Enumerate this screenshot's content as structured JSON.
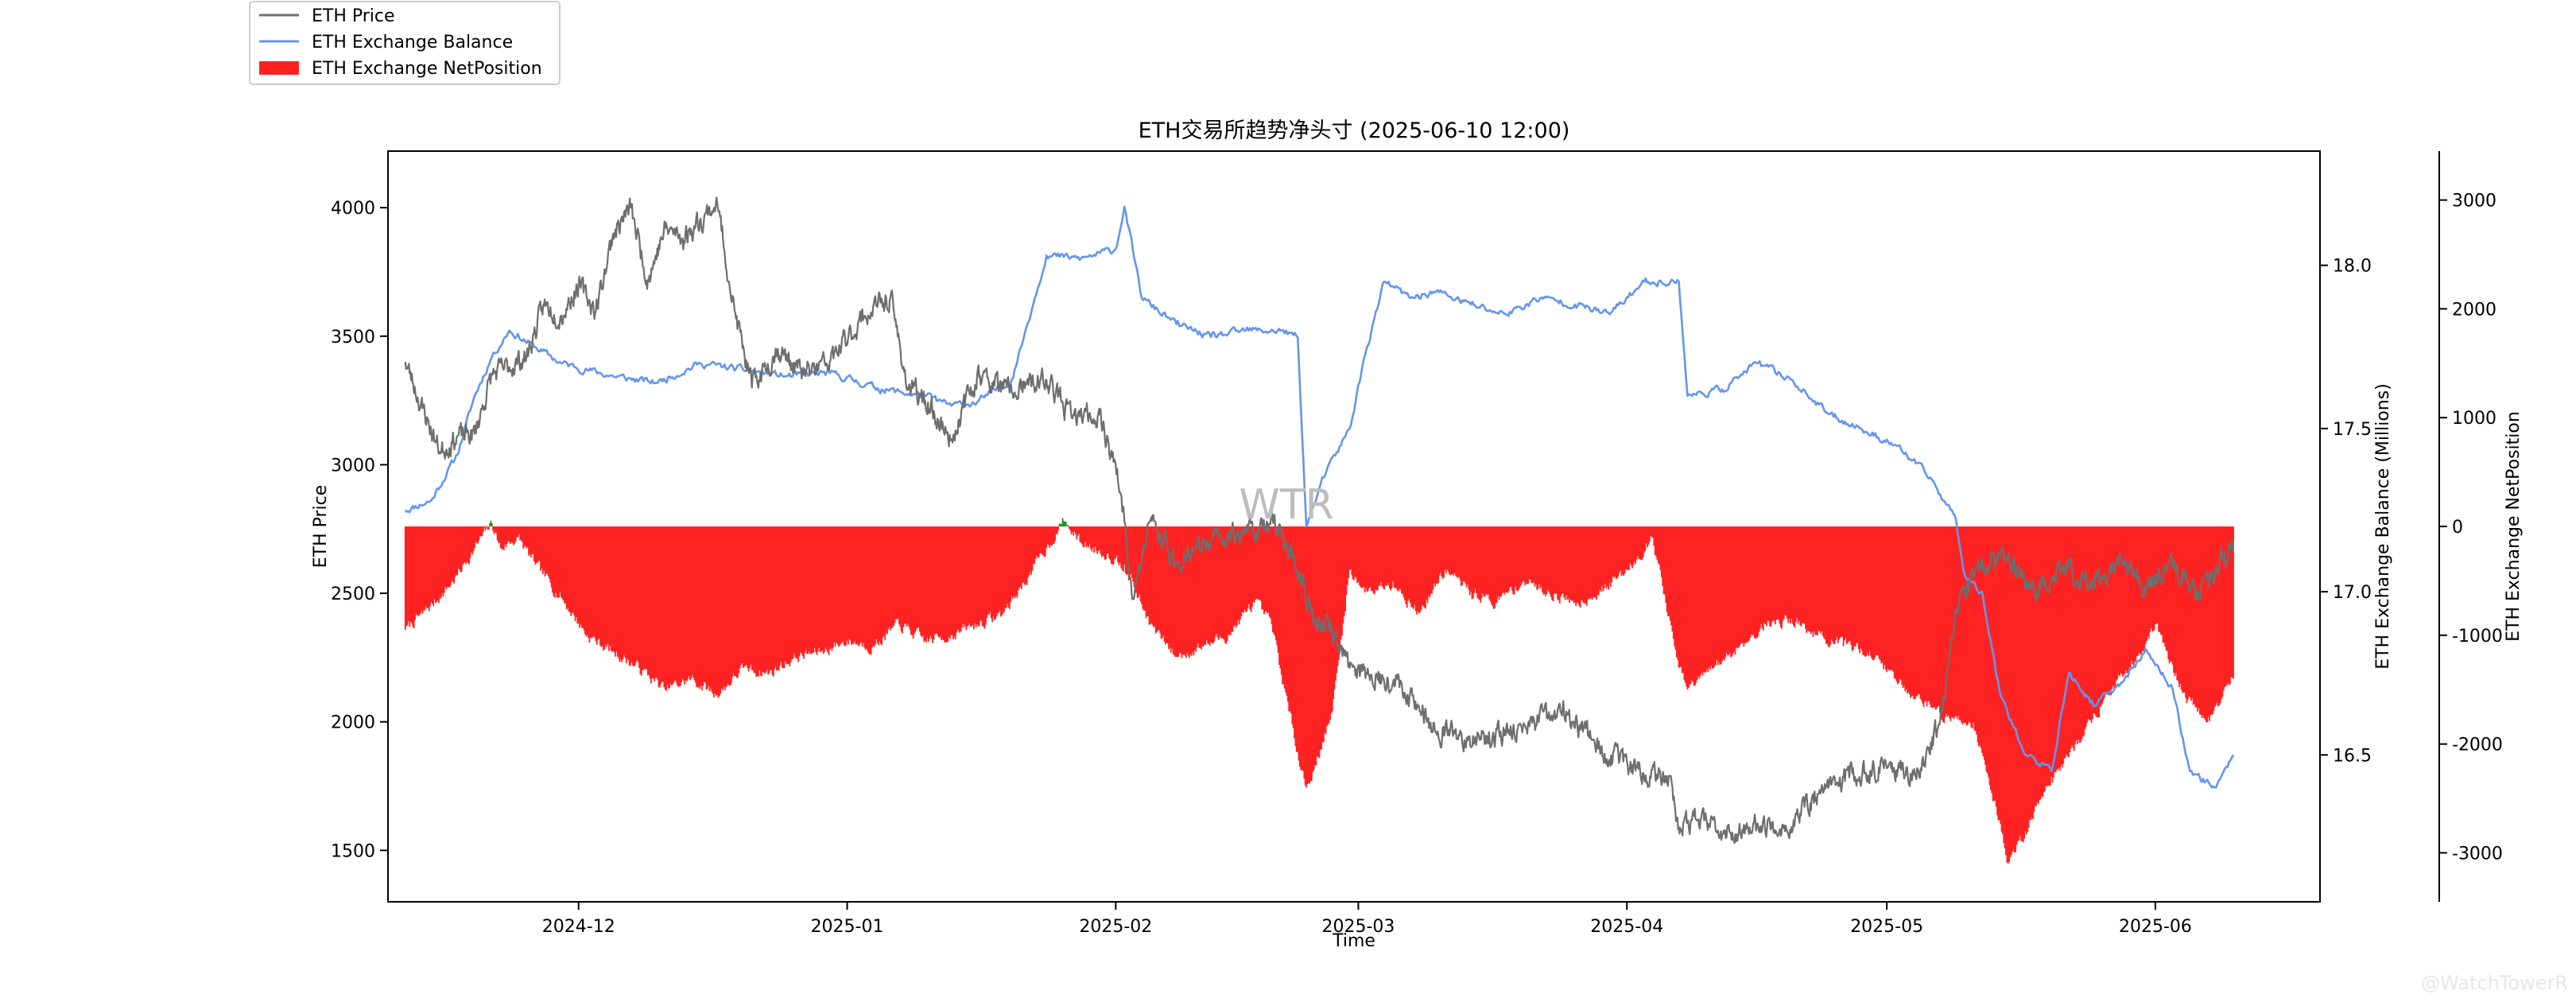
{
  "chart_data": {
    "type": "line",
    "title": "ETH交易所趋势净头寸 (2025-06-10 12:00)",
    "xlabel": "Time",
    "ylabel_left": "ETH Price",
    "ylabel_right1": "ETH Exchange Balance (Millions)",
    "ylabel_right2": "ETH Exchange NetPosition",
    "x_range": [
      "2024-11-09",
      "2025-06-20"
    ],
    "x_ticks": [
      "2024-12",
      "2025-01",
      "2025-02",
      "2025-03",
      "2025-04",
      "2025-05",
      "2025-06"
    ],
    "price_axis": {
      "range": [
        1300,
        4220
      ],
      "ticks": [
        1500,
        2000,
        2500,
        3000,
        3500,
        4000
      ]
    },
    "balance_axis": {
      "range": [
        16.05,
        18.35
      ],
      "ticks": [
        "16.5",
        "17.0",
        "17.5",
        "18.0"
      ]
    },
    "netpos_axis": {
      "range": [
        -3450,
        3450
      ],
      "ticks": [
        -3000,
        -2000,
        -1000,
        0,
        1000,
        2000,
        3000
      ]
    },
    "legend": {
      "position": "top-left",
      "entries": [
        "ETH Price",
        "ETH Exchange Balance",
        "ETH Exchange NetPosition"
      ]
    },
    "colors": {
      "price": "#6e6e6e",
      "balance": "#6495ed",
      "net_negative": "#ff2222",
      "net_positive": "#2e8b22"
    },
    "series": [
      {
        "name": "ETH Price",
        "axis": "left",
        "x": [
          "2024-11-11",
          "2024-11-13",
          "2024-11-15",
          "2024-11-17",
          "2024-11-19",
          "2024-11-21",
          "2024-11-23",
          "2024-11-25",
          "2024-11-27",
          "2024-11-29",
          "2024-12-01",
          "2024-12-03",
          "2024-12-05",
          "2024-12-07",
          "2024-12-09",
          "2024-12-11",
          "2024-12-13",
          "2024-12-15",
          "2024-12-17",
          "2024-12-19",
          "2024-12-21",
          "2024-12-24",
          "2024-12-27",
          "2024-12-30",
          "2025-01-03",
          "2025-01-06",
          "2025-01-08",
          "2025-01-10",
          "2025-01-13",
          "2025-01-16",
          "2025-01-20",
          "2025-01-24",
          "2025-01-27",
          "2025-01-30",
          "2025-02-01",
          "2025-02-02",
          "2025-02-03",
          "2025-02-05",
          "2025-02-08",
          "2025-02-12",
          "2025-02-16",
          "2025-02-20",
          "2025-02-24",
          "2025-02-26",
          "2025-02-28",
          "2025-03-03",
          "2025-03-06",
          "2025-03-10",
          "2025-03-15",
          "2025-03-20",
          "2025-03-25",
          "2025-03-29",
          "2025-04-02",
          "2025-04-06",
          "2025-04-07",
          "2025-04-09",
          "2025-04-12",
          "2025-04-16",
          "2025-04-20",
          "2025-04-23",
          "2025-04-27",
          "2025-05-01",
          "2025-05-05",
          "2025-05-07",
          "2025-05-09",
          "2025-05-11",
          "2025-05-14",
          "2025-05-18",
          "2025-05-22",
          "2025-05-25",
          "2025-05-28",
          "2025-05-31",
          "2025-06-03",
          "2025-06-06",
          "2025-06-09",
          "2025-06-10"
        ],
        "values": [
          3400,
          3220,
          3050,
          3110,
          3120,
          3350,
          3380,
          3420,
          3620,
          3580,
          3700,
          3600,
          3900,
          4000,
          3720,
          3920,
          3880,
          3950,
          4020,
          3600,
          3300,
          3450,
          3350,
          3400,
          3580,
          3650,
          3300,
          3250,
          3100,
          3350,
          3280,
          3330,
          3180,
          3200,
          3000,
          2780,
          2480,
          2780,
          2620,
          2700,
          2750,
          2760,
          2400,
          2350,
          2210,
          2180,
          2150,
          1960,
          1930,
          1980,
          2040,
          1890,
          1810,
          1790,
          1590,
          1620,
          1560,
          1600,
          1590,
          1720,
          1800,
          1820,
          1810,
          1990,
          2420,
          2580,
          2650,
          2520,
          2600,
          2520,
          2640,
          2520,
          2600,
          2500,
          2660,
          2710
        ]
      },
      {
        "name": "ETH Exchange Balance",
        "axis": "right1",
        "x": [
          "2024-11-11",
          "2024-11-14",
          "2024-11-17",
          "2024-11-19",
          "2024-11-21",
          "2024-11-23",
          "2024-11-26",
          "2024-11-29",
          "2024-12-02",
          "2024-12-05",
          "2024-12-10",
          "2024-12-15",
          "2024-12-20",
          "2024-12-25",
          "2024-12-30",
          "2025-01-05",
          "2025-01-10",
          "2025-01-13",
          "2025-01-16",
          "2025-01-20",
          "2025-01-24",
          "2025-01-28",
          "2025-02-01",
          "2025-02-02",
          "2025-02-04",
          "2025-02-08",
          "2025-02-12",
          "2025-02-16",
          "2025-02-20",
          "2025-02-22",
          "2025-02-23",
          "2025-02-25",
          "2025-02-28",
          "2025-03-02",
          "2025-03-04",
          "2025-03-07",
          "2025-03-10",
          "2025-03-14",
          "2025-03-18",
          "2025-03-22",
          "2025-03-26",
          "2025-03-30",
          "2025-04-03",
          "2025-04-07",
          "2025-04-08",
          "2025-04-12",
          "2025-04-16",
          "2025-04-20",
          "2025-04-24",
          "2025-04-28",
          "2025-05-02",
          "2025-05-06",
          "2025-05-09",
          "2025-05-10",
          "2025-05-12",
          "2025-05-14",
          "2025-05-17",
          "2025-05-20",
          "2025-05-22",
          "2025-05-25",
          "2025-05-28",
          "2025-05-31",
          "2025-06-03",
          "2025-06-05",
          "2025-06-08",
          "2025-06-10"
        ],
        "values": [
          17.25,
          17.28,
          17.42,
          17.6,
          17.72,
          17.8,
          17.75,
          17.7,
          17.68,
          17.66,
          17.64,
          17.7,
          17.68,
          17.66,
          17.67,
          17.62,
          17.6,
          17.57,
          17.58,
          17.65,
          18.03,
          18.02,
          18.05,
          18.18,
          17.9,
          17.82,
          17.78,
          17.8,
          17.8,
          17.78,
          17.2,
          17.35,
          17.5,
          17.75,
          17.95,
          17.9,
          17.92,
          17.88,
          17.85,
          17.9,
          17.88,
          17.85,
          17.95,
          17.95,
          17.6,
          17.62,
          17.7,
          17.65,
          17.55,
          17.5,
          17.45,
          17.35,
          17.22,
          17.05,
          17.0,
          16.7,
          16.5,
          16.45,
          16.75,
          16.65,
          16.72,
          16.82,
          16.7,
          16.45,
          16.4,
          16.5
        ]
      },
      {
        "name": "ETH Exchange NetPosition",
        "type": "bar",
        "axis": "right2",
        "x": [
          "2024-11-11",
          "2024-11-13",
          "2024-11-15",
          "2024-11-17",
          "2024-11-19",
          "2024-11-21",
          "2024-11-22",
          "2024-11-24",
          "2024-11-26",
          "2024-11-29",
          "2024-12-02",
          "2024-12-05",
          "2024-12-08",
          "2024-12-11",
          "2024-12-14",
          "2024-12-17",
          "2024-12-20",
          "2024-12-23",
          "2024-12-26",
          "2024-12-29",
          "2025-01-01",
          "2025-01-04",
          "2025-01-07",
          "2025-01-10",
          "2025-01-13",
          "2025-01-16",
          "2025-01-19",
          "2025-01-22",
          "2025-01-24",
          "2025-01-26",
          "2025-01-28",
          "2025-01-31",
          "2025-02-02",
          "2025-02-05",
          "2025-02-08",
          "2025-02-11",
          "2025-02-14",
          "2025-02-17",
          "2025-02-19",
          "2025-02-21",
          "2025-02-23",
          "2025-02-24",
          "2025-02-26",
          "2025-02-28",
          "2025-03-02",
          "2025-03-05",
          "2025-03-08",
          "2025-03-11",
          "2025-03-14",
          "2025-03-17",
          "2025-03-20",
          "2025-03-23",
          "2025-03-26",
          "2025-03-29",
          "2025-04-01",
          "2025-04-04",
          "2025-04-07",
          "2025-04-08",
          "2025-04-11",
          "2025-04-14",
          "2025-04-17",
          "2025-04-20",
          "2025-04-23",
          "2025-04-26",
          "2025-04-29",
          "2025-05-02",
          "2025-05-05",
          "2025-05-08",
          "2025-05-11",
          "2025-05-14",
          "2025-05-15",
          "2025-05-17",
          "2025-05-20",
          "2025-05-23",
          "2025-05-26",
          "2025-05-29",
          "2025-06-01",
          "2025-06-04",
          "2025-06-07",
          "2025-06-10"
        ],
        "values": [
          -950,
          -800,
          -650,
          -450,
          -200,
          30,
          -200,
          -100,
          -350,
          -650,
          -1000,
          -1150,
          -1300,
          -1500,
          -1400,
          -1550,
          -1300,
          -1350,
          -1200,
          -1150,
          -1050,
          -1100,
          -900,
          -1050,
          -1000,
          -900,
          -800,
          -450,
          -200,
          50,
          -150,
          -250,
          -350,
          -900,
          -1200,
          -1100,
          -1000,
          -700,
          -900,
          -1700,
          -2400,
          -2200,
          -1700,
          -400,
          -600,
          -500,
          -800,
          -400,
          -600,
          -700,
          -500,
          -600,
          -700,
          -600,
          -400,
          -100,
          -1300,
          -1500,
          -1300,
          -1100,
          -900,
          -850,
          -1000,
          -1100,
          -1150,
          -1400,
          -1600,
          -1750,
          -1800,
          -2700,
          -3100,
          -2800,
          -2300,
          -2000,
          -1600,
          -1300,
          -900,
          -1500,
          -1800,
          -1400
        ]
      }
    ],
    "annotations": [
      "WTR",
      "@WatchTowerR"
    ]
  }
}
